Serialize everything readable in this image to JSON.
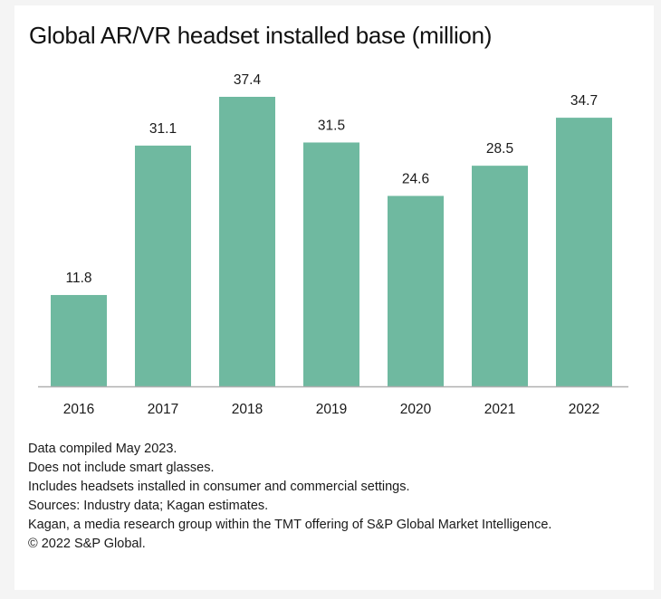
{
  "chart_data": {
    "type": "bar",
    "title": "Global AR/VR headset installed base (million)",
    "categories": [
      "2016",
      "2017",
      "2018",
      "2019",
      "2020",
      "2021",
      "2022"
    ],
    "values": [
      11.8,
      31.1,
      37.4,
      31.5,
      24.6,
      28.5,
      34.7
    ],
    "value_labels": [
      "11.8",
      "31.1",
      "37.4",
      "31.5",
      "24.6",
      "28.5",
      "34.7"
    ],
    "xlabel": "",
    "ylabel": "",
    "ylim": [
      0,
      37.4
    ],
    "grid": false,
    "bar_color": "#6fb9a0",
    "axis_color": "#b0b0b0"
  },
  "footnotes": [
    "Data compiled May 2023.",
    "Does not include smart glasses.",
    "Includes headsets installed in consumer and commercial settings.",
    "Sources: Industry data; Kagan estimates.",
    "Kagan, a media research group within the TMT offering of S&P Global Market Intelligence.",
    "© 2022 S&P Global."
  ]
}
